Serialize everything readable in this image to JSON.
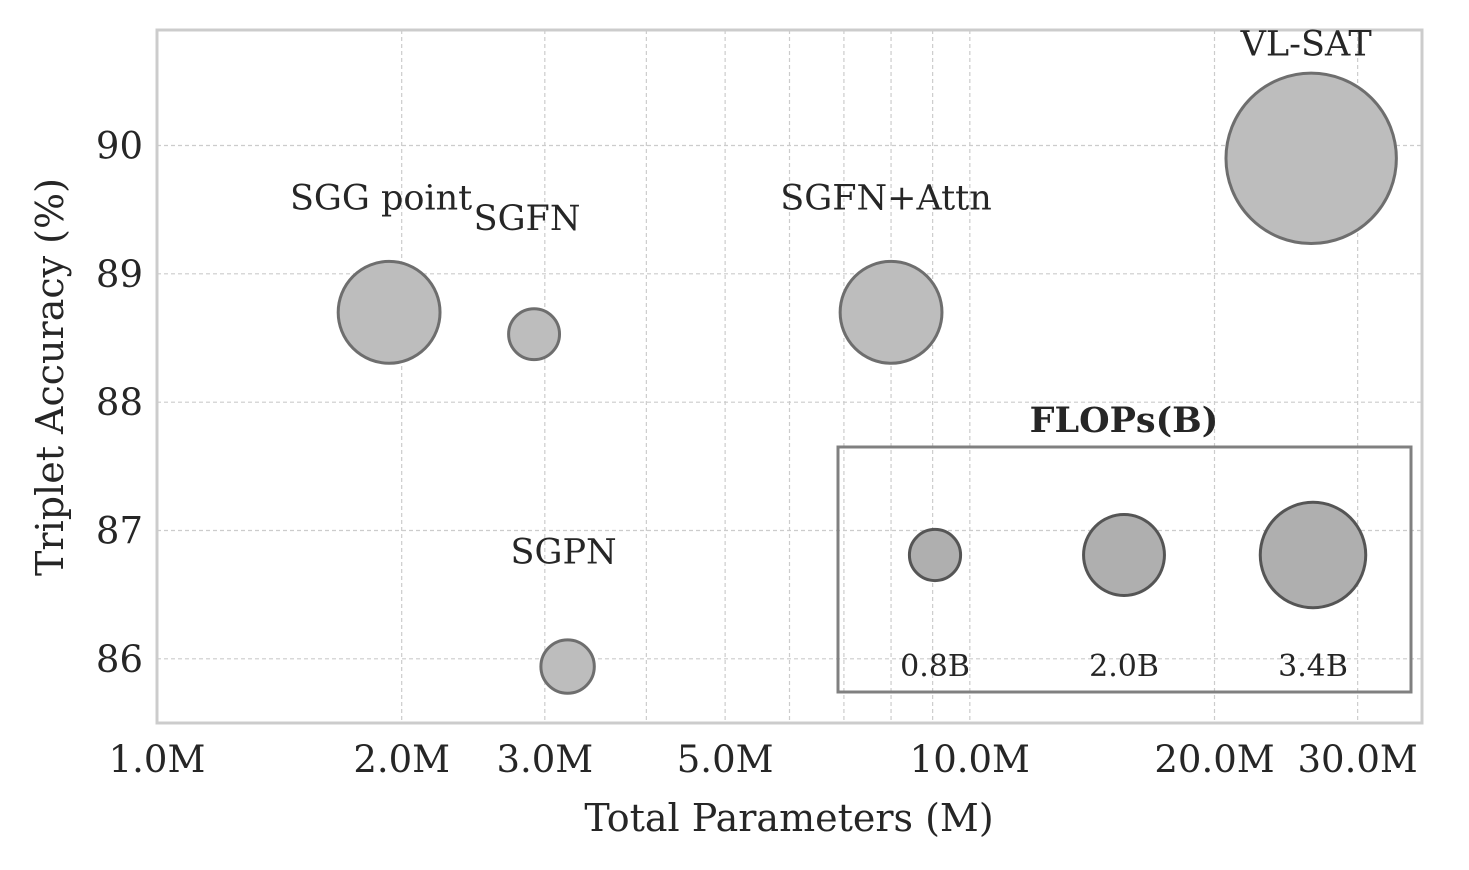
{
  "chart_data": {
    "type": "scatter",
    "subtype": "bubble",
    "xlabel": "Total Parameters (M)",
    "ylabel": "Triplet Accuracy (%)",
    "xscale": "log",
    "xlim": [
      1.0,
      36.0
    ],
    "ylim": [
      85.5,
      90.9
    ],
    "x_ticks": [
      1.0,
      2.0,
      3.0,
      5.0,
      10.0,
      20.0,
      30.0
    ],
    "x_tick_labels": [
      "1.0M",
      "2.0M",
      "3.0M",
      "5.0M",
      "10.0M",
      "20.0M",
      "30.0M"
    ],
    "y_ticks": [
      86,
      87,
      88,
      89,
      90
    ],
    "y_tick_labels": [
      "86",
      "87",
      "88",
      "89",
      "90"
    ],
    "grid": true,
    "points": [
      {
        "label": "SGG point",
        "x": 1.93,
        "y": 88.7,
        "flops": 2.0
      },
      {
        "label": "SGFN",
        "x": 2.91,
        "y": 88.53,
        "flops": 0.5
      },
      {
        "label": "SGPN",
        "x": 3.2,
        "y": 85.94,
        "flops": 0.55
      },
      {
        "label": "SGFN+Attn",
        "x": 8.0,
        "y": 88.7,
        "flops": 2.0
      },
      {
        "label": "VL-SAT",
        "x": 26.3,
        "y": 89.9,
        "flops": 5.6
      }
    ],
    "legend": {
      "title": "FLOPs(B)",
      "position": "lower-right",
      "items": [
        {
          "label": "0.8B",
          "value": 0.8
        },
        {
          "label": "2.0B",
          "value": 2.0
        },
        {
          "label": "3.4B",
          "value": 3.4
        }
      ]
    },
    "colors": {
      "bubble_fill": "#bdbdbd",
      "bubble_edge": "#6e6e6e",
      "legend_fill": "#afafaf",
      "legend_edge": "#555555",
      "frame": "#cccccc",
      "legend_frame": "#808080"
    }
  }
}
